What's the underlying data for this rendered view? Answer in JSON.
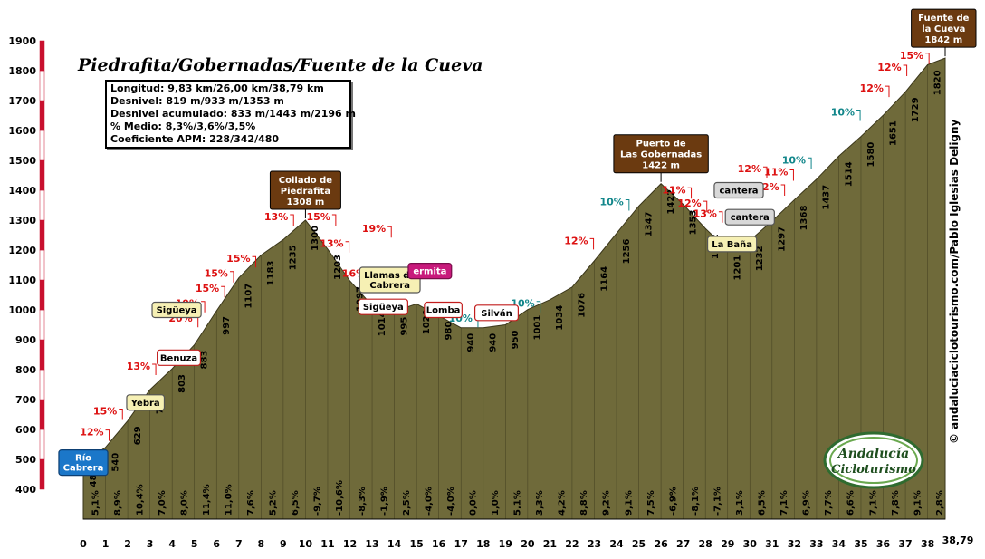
{
  "chart_data": {
    "type": "area",
    "title": "Piedrafita/Gobernadas/Fuente de la Cueva",
    "stats": [
      "Longitud: 9,83 km/26,00 km/38,79 km",
      "Desnivel: 819 m/933 m/1353 m",
      "Desnivel acumulado: 833 m/1443 m/2196 m",
      "% Medio: 8,3%/3,6%/3,5%",
      "Coeficiente APM: 228/342/480"
    ],
    "credit": "© andaluciaciclotourismo.com/Pablo Iglesias Deligny",
    "logo_text": [
      "Andalucía",
      "Cicloturismo"
    ],
    "y_range": [
      400,
      1900
    ],
    "y_ticks": [
      400,
      500,
      600,
      700,
      800,
      900,
      1000,
      1100,
      1200,
      1300,
      1400,
      1500,
      1600,
      1700,
      1800,
      1900
    ],
    "x_range": [
      0,
      38.79
    ],
    "x_ticks": [
      "0",
      "1",
      "2",
      "3",
      "4",
      "5",
      "6",
      "7",
      "8",
      "9",
      "10",
      "11",
      "12",
      "13",
      "14",
      "15",
      "16",
      "17",
      "18",
      "19",
      "20",
      "21",
      "22",
      "23",
      "24",
      "25",
      "26",
      "27",
      "28",
      "29",
      "30",
      "31",
      "32",
      "33",
      "34",
      "35",
      "36",
      "37",
      "38"
    ],
    "x_end_label": "38,79",
    "profile": [
      {
        "x": 0,
        "y": 489
      },
      {
        "x": 1,
        "y": 540
      },
      {
        "x": 2,
        "y": 629
      },
      {
        "x": 3,
        "y": 733
      },
      {
        "x": 4,
        "y": 803
      },
      {
        "x": 5,
        "y": 883
      },
      {
        "x": 6,
        "y": 997
      },
      {
        "x": 7,
        "y": 1107
      },
      {
        "x": 8,
        "y": 1183
      },
      {
        "x": 9,
        "y": 1235
      },
      {
        "x": 10,
        "y": 1300
      },
      {
        "x": 11,
        "y": 1203
      },
      {
        "x": 12,
        "y": 1097
      },
      {
        "x": 13,
        "y": 1014
      },
      {
        "x": 14,
        "y": 995
      },
      {
        "x": 15,
        "y": 1020
      },
      {
        "x": 16,
        "y": 980
      },
      {
        "x": 17,
        "y": 940
      },
      {
        "x": 18,
        "y": 940
      },
      {
        "x": 19,
        "y": 950
      },
      {
        "x": 20,
        "y": 1001
      },
      {
        "x": 21,
        "y": 1034
      },
      {
        "x": 22,
        "y": 1076
      },
      {
        "x": 23,
        "y": 1164
      },
      {
        "x": 24,
        "y": 1256
      },
      {
        "x": 25,
        "y": 1347
      },
      {
        "x": 26,
        "y": 1422
      },
      {
        "x": 27,
        "y": 1353
      },
      {
        "x": 28,
        "y": 1272
      },
      {
        "x": 29,
        "y": 1201
      },
      {
        "x": 30,
        "y": 1232
      },
      {
        "x": 31,
        "y": 1297
      },
      {
        "x": 32,
        "y": 1368
      },
      {
        "x": 33,
        "y": 1437
      },
      {
        "x": 34,
        "y": 1514
      },
      {
        "x": 35,
        "y": 1580
      },
      {
        "x": 36,
        "y": 1651
      },
      {
        "x": 37,
        "y": 1729
      },
      {
        "x": 38,
        "y": 1820
      },
      {
        "x": 38.79,
        "y": 1842
      }
    ],
    "segment_gradients": [
      "5,1%",
      "8,9%",
      "10,4%",
      "7,0%",
      "8,0%",
      "11,4%",
      "11,0%",
      "7,6%",
      "5,2%",
      "6,5%",
      "-9,7%",
      "-10,6%",
      "-8,3%",
      "-1,9%",
      "2,5%",
      "-4,0%",
      "-4,0%",
      "0,0%",
      "1,0%",
      "5,1%",
      "3,3%",
      "4,2%",
      "8,8%",
      "9,2%",
      "9,1%",
      "7,5%",
      "-6,9%",
      "-8,1%",
      "-7,1%",
      "3,1%",
      "6,5%",
      "7,1%",
      "6,9%",
      "7,7%",
      "6,6%",
      "7,1%",
      "7,8%",
      "9,1%",
      "2,8%"
    ],
    "elevation_labels": [
      {
        "x": 0.4,
        "v": "489"
      },
      {
        "x": 1.4,
        "v": "540"
      },
      {
        "x": 2.4,
        "v": "629"
      },
      {
        "x": 3.4,
        "v": "733"
      },
      {
        "x": 4.4,
        "v": "803"
      },
      {
        "x": 5.4,
        "v": "883"
      },
      {
        "x": 6.4,
        "v": "997"
      },
      {
        "x": 7.4,
        "v": "1107"
      },
      {
        "x": 8.4,
        "v": "1183"
      },
      {
        "x": 9.4,
        "v": "1235"
      },
      {
        "x": 10.4,
        "v": "1300"
      },
      {
        "x": 11.4,
        "v": "1203"
      },
      {
        "x": 12.4,
        "v": "1097"
      },
      {
        "x": 13.4,
        "v": "1014"
      },
      {
        "x": 14.4,
        "v": "995"
      },
      {
        "x": 15.4,
        "v": "1020"
      },
      {
        "x": 16.4,
        "v": "980"
      },
      {
        "x": 17.4,
        "v": "940"
      },
      {
        "x": 18.4,
        "v": "940"
      },
      {
        "x": 19.4,
        "v": "950"
      },
      {
        "x": 20.4,
        "v": "1001"
      },
      {
        "x": 21.4,
        "v": "1034"
      },
      {
        "x": 22.4,
        "v": "1076"
      },
      {
        "x": 23.4,
        "v": "1164"
      },
      {
        "x": 24.4,
        "v": "1256"
      },
      {
        "x": 25.4,
        "v": "1347"
      },
      {
        "x": 26.4,
        "v": "1422"
      },
      {
        "x": 27.4,
        "v": "1353"
      },
      {
        "x": 28.4,
        "v": "1272"
      },
      {
        "x": 29.4,
        "v": "1201"
      },
      {
        "x": 30.4,
        "v": "1232"
      },
      {
        "x": 31.4,
        "v": "1297"
      },
      {
        "x": 32.4,
        "v": "1368"
      },
      {
        "x": 33.4,
        "v": "1437"
      },
      {
        "x": 34.4,
        "v": "1514"
      },
      {
        "x": 35.4,
        "v": "1580"
      },
      {
        "x": 36.4,
        "v": "1651"
      },
      {
        "x": 37.4,
        "v": "1729"
      },
      {
        "x": 38.4,
        "v": "1820"
      }
    ],
    "peak_labels": [
      {
        "x": 10,
        "y": 1300,
        "lines": [
          "Collado de",
          "Piedrafita",
          "1308 m"
        ]
      },
      {
        "x": 26,
        "y": 1422,
        "lines": [
          "Puerto de",
          "Las Gobernadas",
          "1422 m"
        ]
      },
      {
        "x": 38.79,
        "y": 1842,
        "lines": [
          "Fuente de",
          "la Cueva",
          "1842 m"
        ]
      }
    ],
    "place_labels": [
      {
        "x": 0,
        "y": 489,
        "lines": [
          "Río",
          "Cabrera"
        ],
        "style": "blue"
      },
      {
        "x": 2.8,
        "y": 690,
        "lines": [
          "Yebra"
        ],
        "style": "yellow"
      },
      {
        "x": 4.3,
        "y": 840,
        "lines": [
          "Benuza"
        ],
        "style": "white-red"
      },
      {
        "x": 4.2,
        "y": 1000,
        "lines": [
          "Sigüeya"
        ],
        "style": "yellow"
      },
      {
        "x": 13.5,
        "y": 1010,
        "lines": [
          "Sigüeya"
        ],
        "style": "white-red"
      },
      {
        "x": 13.8,
        "y": 1100,
        "lines": [
          "Llamas de",
          "Cabrera"
        ],
        "style": "yellow"
      },
      {
        "x": 16.2,
        "y": 1000,
        "lines": [
          "Lomba"
        ],
        "style": "white-red"
      },
      {
        "x": 15.6,
        "y": 1130,
        "lines": [
          "ermita"
        ],
        "style": "magenta"
      },
      {
        "x": 18.6,
        "y": 990,
        "lines": [
          "Silván"
        ],
        "style": "white-red"
      },
      {
        "x": 29.2,
        "y": 1220,
        "lines": [
          "La Baña"
        ],
        "style": "yellow"
      },
      {
        "x": 29.5,
        "y": 1400,
        "lines": [
          "cantera"
        ],
        "style": "grey"
      },
      {
        "x": 30.0,
        "y": 1310,
        "lines": [
          "cantera"
        ],
        "style": "grey"
      }
    ],
    "max_gradients": [
      {
        "x": 1.0,
        "y": 580,
        "v": "12%",
        "c": "red"
      },
      {
        "x": 1.6,
        "y": 650,
        "v": "15%",
        "c": "red"
      },
      {
        "x": 3.1,
        "y": 800,
        "v": "13%",
        "c": "red"
      },
      {
        "x": 5.0,
        "y": 960,
        "v": "20%",
        "c": "red"
      },
      {
        "x": 5.3,
        "y": 1010,
        "v": "19%",
        "c": "red"
      },
      {
        "x": 6.2,
        "y": 1060,
        "v": "15%",
        "c": "red"
      },
      {
        "x": 6.6,
        "y": 1110,
        "v": "15%",
        "c": "red"
      },
      {
        "x": 7.6,
        "y": 1160,
        "v": "15%",
        "c": "red"
      },
      {
        "x": 9.3,
        "y": 1300,
        "v": "13%",
        "c": "red"
      },
      {
        "x": 11.2,
        "y": 1300,
        "v": "15%",
        "c": "red"
      },
      {
        "x": 11.8,
        "y": 1210,
        "v": "13%",
        "c": "red"
      },
      {
        "x": 12.8,
        "y": 1110,
        "v": "16%",
        "c": "red"
      },
      {
        "x": 13.7,
        "y": 1260,
        "v": "19%",
        "c": "red"
      },
      {
        "x": 17.6,
        "y": 960,
        "v": "10%",
        "c": "teal"
      },
      {
        "x": 20.4,
        "y": 1010,
        "v": "10%",
        "c": "teal"
      },
      {
        "x": 22.8,
        "y": 1220,
        "v": "12%",
        "c": "red"
      },
      {
        "x": 24.4,
        "y": 1350,
        "v": "10%",
        "c": "teal"
      },
      {
        "x": 27.2,
        "y": 1390,
        "v": "11%",
        "c": "red"
      },
      {
        "x": 27.9,
        "y": 1345,
        "v": "12%",
        "c": "red"
      },
      {
        "x": 28.6,
        "y": 1310,
        "v": "13%",
        "c": "red"
      },
      {
        "x": 30.6,
        "y": 1460,
        "v": "12%",
        "c": "red"
      },
      {
        "x": 31.8,
        "y": 1450,
        "v": "11%",
        "c": "red"
      },
      {
        "x": 31.4,
        "y": 1400,
        "v": "12%",
        "c": "red"
      },
      {
        "x": 32.6,
        "y": 1490,
        "v": "10%",
        "c": "teal"
      },
      {
        "x": 34.8,
        "y": 1650,
        "v": "10%",
        "c": "teal"
      },
      {
        "x": 36.1,
        "y": 1730,
        "v": "12%",
        "c": "red"
      },
      {
        "x": 36.9,
        "y": 1800,
        "v": "12%",
        "c": "red"
      },
      {
        "x": 37.9,
        "y": 1840,
        "v": "15%",
        "c": "red"
      }
    ],
    "colors": {
      "fill": "#6f6a3a",
      "axis_bar_red": "#c8102e",
      "peak_box": "#6b3a10",
      "place_blue": "#1b77c9",
      "place_yellow": "#f6f0b4",
      "place_grey": "#d8d8d8",
      "place_magenta": "#c81a7c",
      "pct_red": "#dd1111",
      "pct_teal": "#11868a"
    }
  }
}
